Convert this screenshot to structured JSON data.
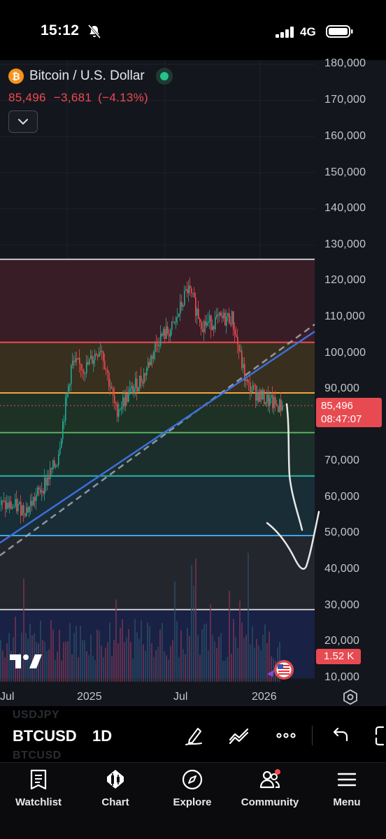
{
  "status_bar": {
    "time": "15:12",
    "network": "4G",
    "icons": [
      "bell-slash-icon",
      "signal-icon",
      "battery-icon"
    ]
  },
  "symbol": {
    "name": "Bitcoin / U.S. Dollar",
    "icon": "bitcoin-icon",
    "price": "85,496",
    "change": "−3,681",
    "change_pct": "(−4.13%)",
    "status": "live-dot"
  },
  "price_axis": [
    "180,000",
    "170,000",
    "160,000",
    "150,000",
    "140,000",
    "130,000",
    "120,000",
    "110,000",
    "100,000",
    "90,000",
    "70,000",
    "60,000",
    "50,000",
    "40,000",
    "30,000",
    "20,000",
    "10,000"
  ],
  "price_tag": {
    "price": "85,496",
    "countdown": "08:47:07"
  },
  "volume_tag": "1.52 K",
  "time_axis": [
    "Jul",
    "2025",
    "Jul",
    "2026"
  ],
  "colors": {
    "background": "#14161e",
    "down": "#ef4a4f",
    "up": "#22ab94",
    "trendline": "#3b6fd9"
  },
  "chart_data": {
    "type": "candlestick",
    "timeframe": "1D",
    "ylim": [
      10000,
      180000
    ],
    "x_ticks": [
      "Jul",
      "2025",
      "Jul",
      "2026"
    ],
    "last_price": 85496,
    "closes": [
      {
        "date": "2024-06",
        "value": 58000
      },
      {
        "date": "2024-08",
        "value": 57000
      },
      {
        "date": "2024-09",
        "value": 63000
      },
      {
        "date": "2024-10",
        "value": 70000
      },
      {
        "date": "2024-11",
        "value": 97000
      },
      {
        "date": "2024-12",
        "value": 96000
      },
      {
        "date": "2025-01",
        "value": 102000
      },
      {
        "date": "2025-02",
        "value": 84000
      },
      {
        "date": "2025-04",
        "value": 94000
      },
      {
        "date": "2025-05",
        "value": 104000
      },
      {
        "date": "2025-06",
        "value": 107000
      },
      {
        "date": "2025-07",
        "value": 118000
      },
      {
        "date": "2025-08",
        "value": 108000
      },
      {
        "date": "2025-10",
        "value": 110000
      },
      {
        "date": "2025-11",
        "value": 91000
      },
      {
        "date": "2025-12",
        "value": 88000
      },
      {
        "date": "2026-01",
        "value": 85496
      }
    ],
    "horizontal_levels": [
      {
        "value": 126000,
        "color": "#c7c7c7"
      },
      {
        "value": 103000,
        "color": "#ef4a4f"
      },
      {
        "value": 89000,
        "color": "#f7a23b"
      },
      {
        "value": 78000,
        "color": "#54b45b"
      },
      {
        "value": 66000,
        "color": "#2bb3a3"
      },
      {
        "value": 49500,
        "color": "#3fa6e6"
      },
      {
        "value": 29000,
        "color": "#c7c7c7"
      }
    ],
    "zones": [
      {
        "from": 103000,
        "to": 126000,
        "color": "#3a1d28"
      },
      {
        "from": 89000,
        "to": 103000,
        "color": "#3a3020"
      },
      {
        "from": 78000,
        "to": 89000,
        "color": "#1e3426"
      },
      {
        "from": 66000,
        "to": 78000,
        "color": "#1c2f2c"
      },
      {
        "from": 49500,
        "to": 66000,
        "color": "#192e38"
      },
      {
        "from": 29000,
        "to": 49500,
        "color": "#25272e"
      },
      {
        "from": 10000,
        "to": 29000,
        "color": "#192248"
      }
    ]
  },
  "toolbar": {
    "ticker": "BTCUSD",
    "interval": "1D",
    "ghost_top": "USDJPY",
    "ghost_bottom": "BTCUSD"
  },
  "nav": [
    {
      "label": "Watchlist",
      "icon": "watchlist-icon"
    },
    {
      "label": "Chart",
      "icon": "chart-icon"
    },
    {
      "label": "Explore",
      "icon": "compass-icon"
    },
    {
      "label": "Community",
      "icon": "community-icon"
    },
    {
      "label": "Menu",
      "icon": "menu-icon"
    }
  ]
}
